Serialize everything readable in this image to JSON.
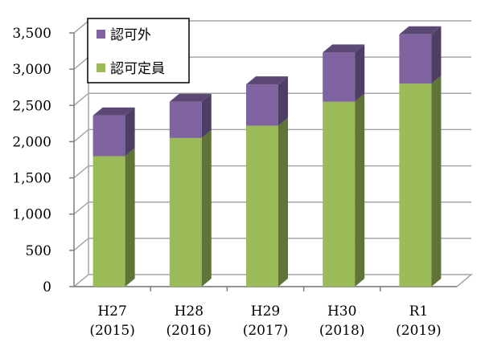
{
  "chart_data": {
    "type": "bar",
    "stacked": true,
    "three_d": true,
    "categories": [
      "H27\n(2015)",
      "H28\n(2016)",
      "H29\n(2017)",
      "H30\n(2018)",
      "R1\n(2019)"
    ],
    "category_lines": [
      [
        "H27",
        "(2015)"
      ],
      [
        "H28",
        "(2016)"
      ],
      [
        "H29",
        "(2017)"
      ],
      [
        "H30",
        "(2018)"
      ],
      [
        "R1",
        "(2019)"
      ]
    ],
    "series": [
      {
        "name": "認可定員",
        "values": [
          1800,
          2050,
          2220,
          2550,
          2800
        ],
        "color": "#9BBB59"
      },
      {
        "name": "認可外",
        "values": [
          560,
          500,
          570,
          680,
          680
        ],
        "color": "#8064A2"
      }
    ],
    "ylim": [
      0,
      3500
    ],
    "yticks": [
      0,
      500,
      1000,
      1500,
      2000,
      2500,
      3000,
      3500
    ],
    "ytick_labels": [
      "0",
      "500",
      "1,000",
      "1,500",
      "2,000",
      "2,500",
      "3,000",
      "3,500"
    ],
    "grid": true,
    "legend": "top-left",
    "title": "",
    "xlabel": "",
    "ylabel": ""
  }
}
